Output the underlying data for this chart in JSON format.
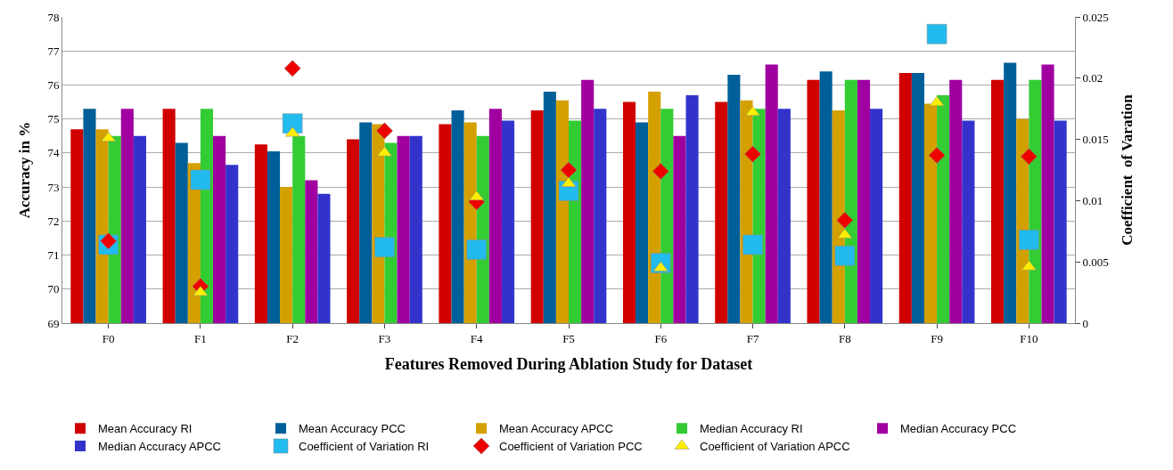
{
  "chart_data": {
    "type": "bar",
    "xlabel": "Features Removed During Ablation Study for Dataset",
    "ylabel": "Accuracy in %",
    "y2label": "Coefficient  of Varation",
    "categories": [
      "F0",
      "F1",
      "F2",
      "F3",
      "F4",
      "F5",
      "F6",
      "F7",
      "F8",
      "F9",
      "F10"
    ],
    "series": [
      {
        "name": "Mean Accuracy RI",
        "color": "#d00000",
        "values": [
          74.7,
          75.3,
          74.25,
          74.4,
          74.85,
          75.25,
          75.5,
          75.5,
          76.15,
          76.35,
          76.15
        ]
      },
      {
        "name": "Mean Accuracy PCC",
        "color": "#005f99",
        "values": [
          75.3,
          74.3,
          74.05,
          74.9,
          75.25,
          75.8,
          74.9,
          76.3,
          76.4,
          76.35,
          76.65
        ]
      },
      {
        "name": "Mean Accuracy APCC",
        "color": "#d4a000",
        "values": [
          74.7,
          73.7,
          73.0,
          74.85,
          74.9,
          75.55,
          75.8,
          75.55,
          75.25,
          75.45,
          75.0
        ]
      },
      {
        "name": "Median Accuracy RI",
        "color": "#33cc33",
        "values": [
          74.5,
          75.3,
          74.5,
          74.3,
          74.5,
          74.95,
          75.3,
          75.3,
          76.15,
          75.7,
          76.15
        ]
      },
      {
        "name": "Median Accuracy PCC",
        "color": "#a000a0",
        "values": [
          75.3,
          74.5,
          73.2,
          74.5,
          75.3,
          76.15,
          74.5,
          76.6,
          76.15,
          76.15,
          76.6
        ]
      },
      {
        "name": "Median Accuracy APCC",
        "color": "#3333cc",
        "values": [
          74.5,
          73.65,
          72.8,
          74.5,
          74.95,
          75.3,
          75.7,
          75.3,
          75.3,
          74.95,
          74.95
        ]
      },
      {
        "name": "Coefficient of Variation RI",
        "type": "scatter",
        "axis": "y2",
        "marker": "square",
        "color": "#22bbee",
        "values": [
          0.0064,
          0.0117,
          0.0163,
          0.0062,
          0.006,
          0.0108,
          0.0049,
          0.0064,
          0.0055,
          0.0236,
          0.0068
        ]
      },
      {
        "name": "Coefficient of Variation PCC",
        "type": "scatter",
        "axis": "y2",
        "marker": "diamond",
        "color": "#ee0000",
        "values": [
          0.0067,
          0.003,
          0.0208,
          0.0157,
          0.0099,
          0.0125,
          0.0124,
          0.0138,
          0.0084,
          0.0137,
          0.0136
        ]
      },
      {
        "name": "Coefficient of Variation APCC",
        "type": "scatter",
        "axis": "y2",
        "marker": "triangle",
        "color": "#ffee00",
        "values": [
          0.0151,
          0.0025,
          0.0155,
          0.0139,
          0.0103,
          0.0114,
          0.0045,
          0.0172,
          0.0072,
          0.018,
          0.0046
        ]
      }
    ],
    "ylim": [
      69,
      78
    ],
    "yticks": [
      69,
      70,
      71,
      72,
      73,
      74,
      75,
      76,
      77,
      78
    ],
    "y2lim": [
      0,
      0.025
    ],
    "y2ticks": [
      0,
      0.005,
      0.01,
      0.015,
      0.02,
      0.025
    ],
    "grid": "y",
    "legend": "bottom"
  }
}
